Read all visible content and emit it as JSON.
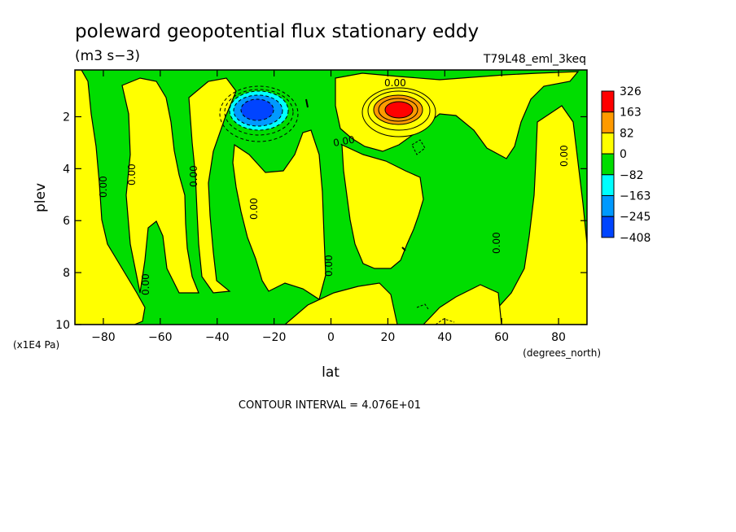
{
  "chart_data": {
    "type": "heatmap",
    "title": "poleward geopotential flux stationary eddy",
    "units": "(m3 s−3)",
    "run_label": "T79L48_eml_3keq",
    "xlabel": "lat",
    "x_units": "(degrees_north)",
    "ylabel": "plev",
    "y_units": "(x1E4 Pa)",
    "xlim": [
      -90,
      90
    ],
    "ylim": [
      10,
      0.2
    ],
    "x_ticks": [
      -80,
      -60,
      -40,
      -20,
      0,
      20,
      40,
      60,
      80
    ],
    "y_ticks": [
      2,
      4,
      6,
      8,
      10
    ],
    "contour_interval_text": "CONTOUR INTERVAL = 4.076E+01",
    "contour_label": "0.00",
    "legend": {
      "levels": [
        "326",
        "163",
        "82",
        "0",
        "−82",
        "−163",
        "−245",
        "−408"
      ],
      "colors": [
        "#ff0000",
        "#ff9a00",
        "#ffff00",
        "#00dd00",
        "#00ffff",
        "#0099ff",
        "#0044ff"
      ]
    },
    "features": [
      {
        "name": "positive maximum",
        "lat": 25,
        "plev": 1.6,
        "value_range": "163 to 326"
      },
      {
        "name": "negative minimum",
        "lat": -27,
        "plev": 1.6,
        "value_range": "-408 to -245"
      }
    ]
  }
}
